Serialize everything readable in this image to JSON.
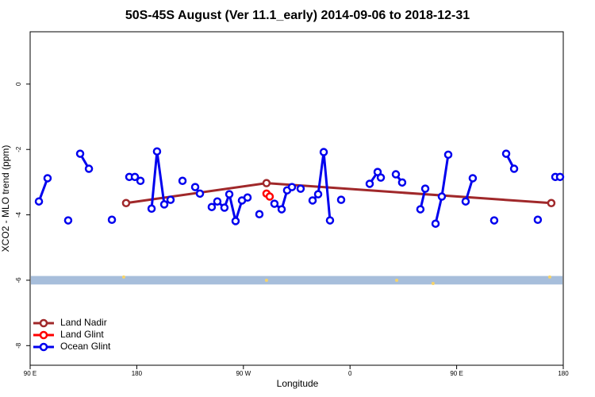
{
  "chart_data": {
    "type": "line",
    "title": "50S-45S August (Ver 11.1_early)   2014-09-06 to 2018-12-31",
    "x_label": "Longitude",
    "y_label": "XCO2 - MLO trend (ppm)",
    "xlim": [
      90,
      540
    ],
    "xticks": [
      {
        "value": 90,
        "label": "90 E"
      },
      {
        "value": 180,
        "label": "180"
      },
      {
        "value": 270,
        "label": "90 W"
      },
      {
        "value": 360,
        "label": "0"
      },
      {
        "value": 450,
        "label": "90 E"
      },
      {
        "value": 540,
        "label": "180"
      }
    ],
    "ylim": [
      -8.6,
      1.6
    ],
    "yticks": [
      0,
      -2,
      -4,
      -6,
      -8
    ],
    "legend": "bottom-left",
    "band": {
      "ylim": [
        -6.13,
        -5.87
      ],
      "color": "#a7bedb"
    },
    "band_points": {
      "color": "#f6d36a",
      "x": [
        169.0,
        289.5,
        399.4,
        430.1,
        528.6
      ],
      "y": [
        -5.9,
        -6.0,
        -6.0,
        -6.1,
        -5.9
      ]
    },
    "series": [
      {
        "name": "Land Nadir",
        "color": "#a0282a",
        "x": [
          171.0,
          289.5,
          529.9
        ],
        "values": [
          -3.64,
          -3.03,
          -3.64
        ]
      },
      {
        "name": "Land Glint",
        "color": "#ff0000",
        "x": [
          289.5,
          292.2
        ],
        "values": [
          -3.35,
          -3.44
        ]
      },
      {
        "name": "Ocean Glint",
        "color": "#0000ee",
        "x": [
          97.4,
          104.7,
          null,
          122.1,
          null,
          132.2,
          139.6,
          null,
          159.0,
          null,
          173.7,
          178.4,
          183.1,
          null,
          192.5,
          197.1,
          203.2,
          208.5,
          null,
          218.6,
          null,
          229.3,
          233.3,
          null,
          243.3,
          248.0,
          254.0,
          258.1,
          263.4,
          268.8,
          273.5,
          null,
          283.5,
          null,
          296.2,
          302.3,
          306.9,
          311.0,
          null,
          318.3,
          null,
          328.4,
          333.1,
          337.8,
          343.1,
          null,
          352.5,
          null,
          376.6,
          383.3,
          386.0,
          null,
          398.7,
          404.0,
          null,
          419.4,
          423.5,
          null,
          432.2,
          437.5,
          442.9,
          null,
          457.6,
          463.6,
          null,
          481.7,
          null,
          491.8,
          498.5,
          null,
          518.5,
          null,
          533.3,
          537.3
        ],
        "values": [
          -3.59,
          -2.88,
          null,
          -4.17,
          null,
          -2.13,
          -2.59,
          null,
          -4.15,
          null,
          -2.84,
          -2.84,
          -2.96,
          null,
          -3.81,
          -2.06,
          -3.68,
          -3.54,
          null,
          -2.96,
          null,
          -3.15,
          -3.35,
          null,
          -3.76,
          -3.59,
          -3.78,
          -3.37,
          -4.19,
          -3.56,
          -3.47,
          null,
          -3.98,
          null,
          -3.66,
          -3.83,
          -3.25,
          -3.15,
          null,
          -3.2,
          null,
          -3.56,
          -3.37,
          -2.08,
          -4.17,
          null,
          -3.54,
          null,
          -3.05,
          -2.69,
          -2.86,
          null,
          -2.76,
          -3.01,
          null,
          -3.83,
          -3.2,
          null,
          -4.27,
          -3.44,
          -2.16,
          null,
          -3.59,
          -2.88,
          null,
          -4.17,
          null,
          -2.13,
          -2.59,
          null,
          -4.15,
          null,
          -2.84,
          -2.84
        ]
      }
    ]
  }
}
